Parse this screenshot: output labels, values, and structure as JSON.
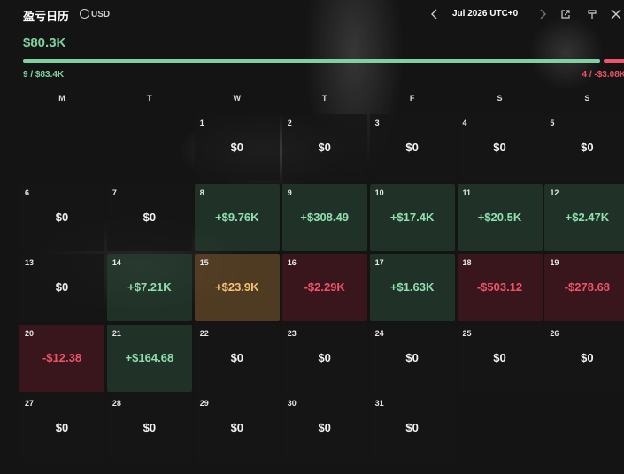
{
  "header": {
    "title": "盈亏日历",
    "currency": "USD",
    "month": "Jul 2026 UTC+0"
  },
  "summary": {
    "total": "$80.3K",
    "wins": "9 / $83.4K",
    "losses": "4 / -$3.08K"
  },
  "weekdays": [
    "M",
    "T",
    "W",
    "T",
    "F",
    "S",
    "S"
  ],
  "days": [
    {
      "day": "1",
      "pnl": "$0",
      "tone": "zero"
    },
    {
      "day": "2",
      "pnl": "$0",
      "tone": "zero"
    },
    {
      "day": "3",
      "pnl": "$0",
      "tone": "zero"
    },
    {
      "day": "4",
      "pnl": "$0",
      "tone": "zero"
    },
    {
      "day": "5",
      "pnl": "$0",
      "tone": "zero"
    },
    {
      "day": "6",
      "pnl": "$0",
      "tone": "zero"
    },
    {
      "day": "7",
      "pnl": "$0",
      "tone": "zero"
    },
    {
      "day": "8",
      "pnl": "+$9.76K",
      "tone": "profit"
    },
    {
      "day": "9",
      "pnl": "+$308.49",
      "tone": "profit"
    },
    {
      "day": "10",
      "pnl": "+$17.4K",
      "tone": "profit"
    },
    {
      "day": "11",
      "pnl": "+$20.5K",
      "tone": "profit"
    },
    {
      "day": "12",
      "pnl": "+$2.47K",
      "tone": "profit"
    },
    {
      "day": "13",
      "pnl": "$0",
      "tone": "zero"
    },
    {
      "day": "14",
      "pnl": "+$7.21K",
      "tone": "profit"
    },
    {
      "day": "15",
      "pnl": "+$23.9K",
      "tone": "best"
    },
    {
      "day": "16",
      "pnl": "-$2.29K",
      "tone": "loss"
    },
    {
      "day": "17",
      "pnl": "+$1.63K",
      "tone": "profit"
    },
    {
      "day": "18",
      "pnl": "-$503.12",
      "tone": "loss"
    },
    {
      "day": "19",
      "pnl": "-$278.68",
      "tone": "loss"
    },
    {
      "day": "20",
      "pnl": "-$12.38",
      "tone": "loss"
    },
    {
      "day": "21",
      "pnl": "+$164.68",
      "tone": "profit"
    },
    {
      "day": "22",
      "pnl": "$0",
      "tone": "zero"
    },
    {
      "day": "23",
      "pnl": "$0",
      "tone": "zero"
    },
    {
      "day": "24",
      "pnl": "$0",
      "tone": "zero"
    },
    {
      "day": "25",
      "pnl": "$0",
      "tone": "zero"
    },
    {
      "day": "26",
      "pnl": "$0",
      "tone": "zero"
    },
    {
      "day": "27",
      "pnl": "$0",
      "tone": "zero"
    },
    {
      "day": "28",
      "pnl": "$0",
      "tone": "zero"
    },
    {
      "day": "29",
      "pnl": "$0",
      "tone": "zero"
    },
    {
      "day": "30",
      "pnl": "$0",
      "tone": "zero"
    },
    {
      "day": "31",
      "pnl": "$0",
      "tone": "zero"
    }
  ]
}
